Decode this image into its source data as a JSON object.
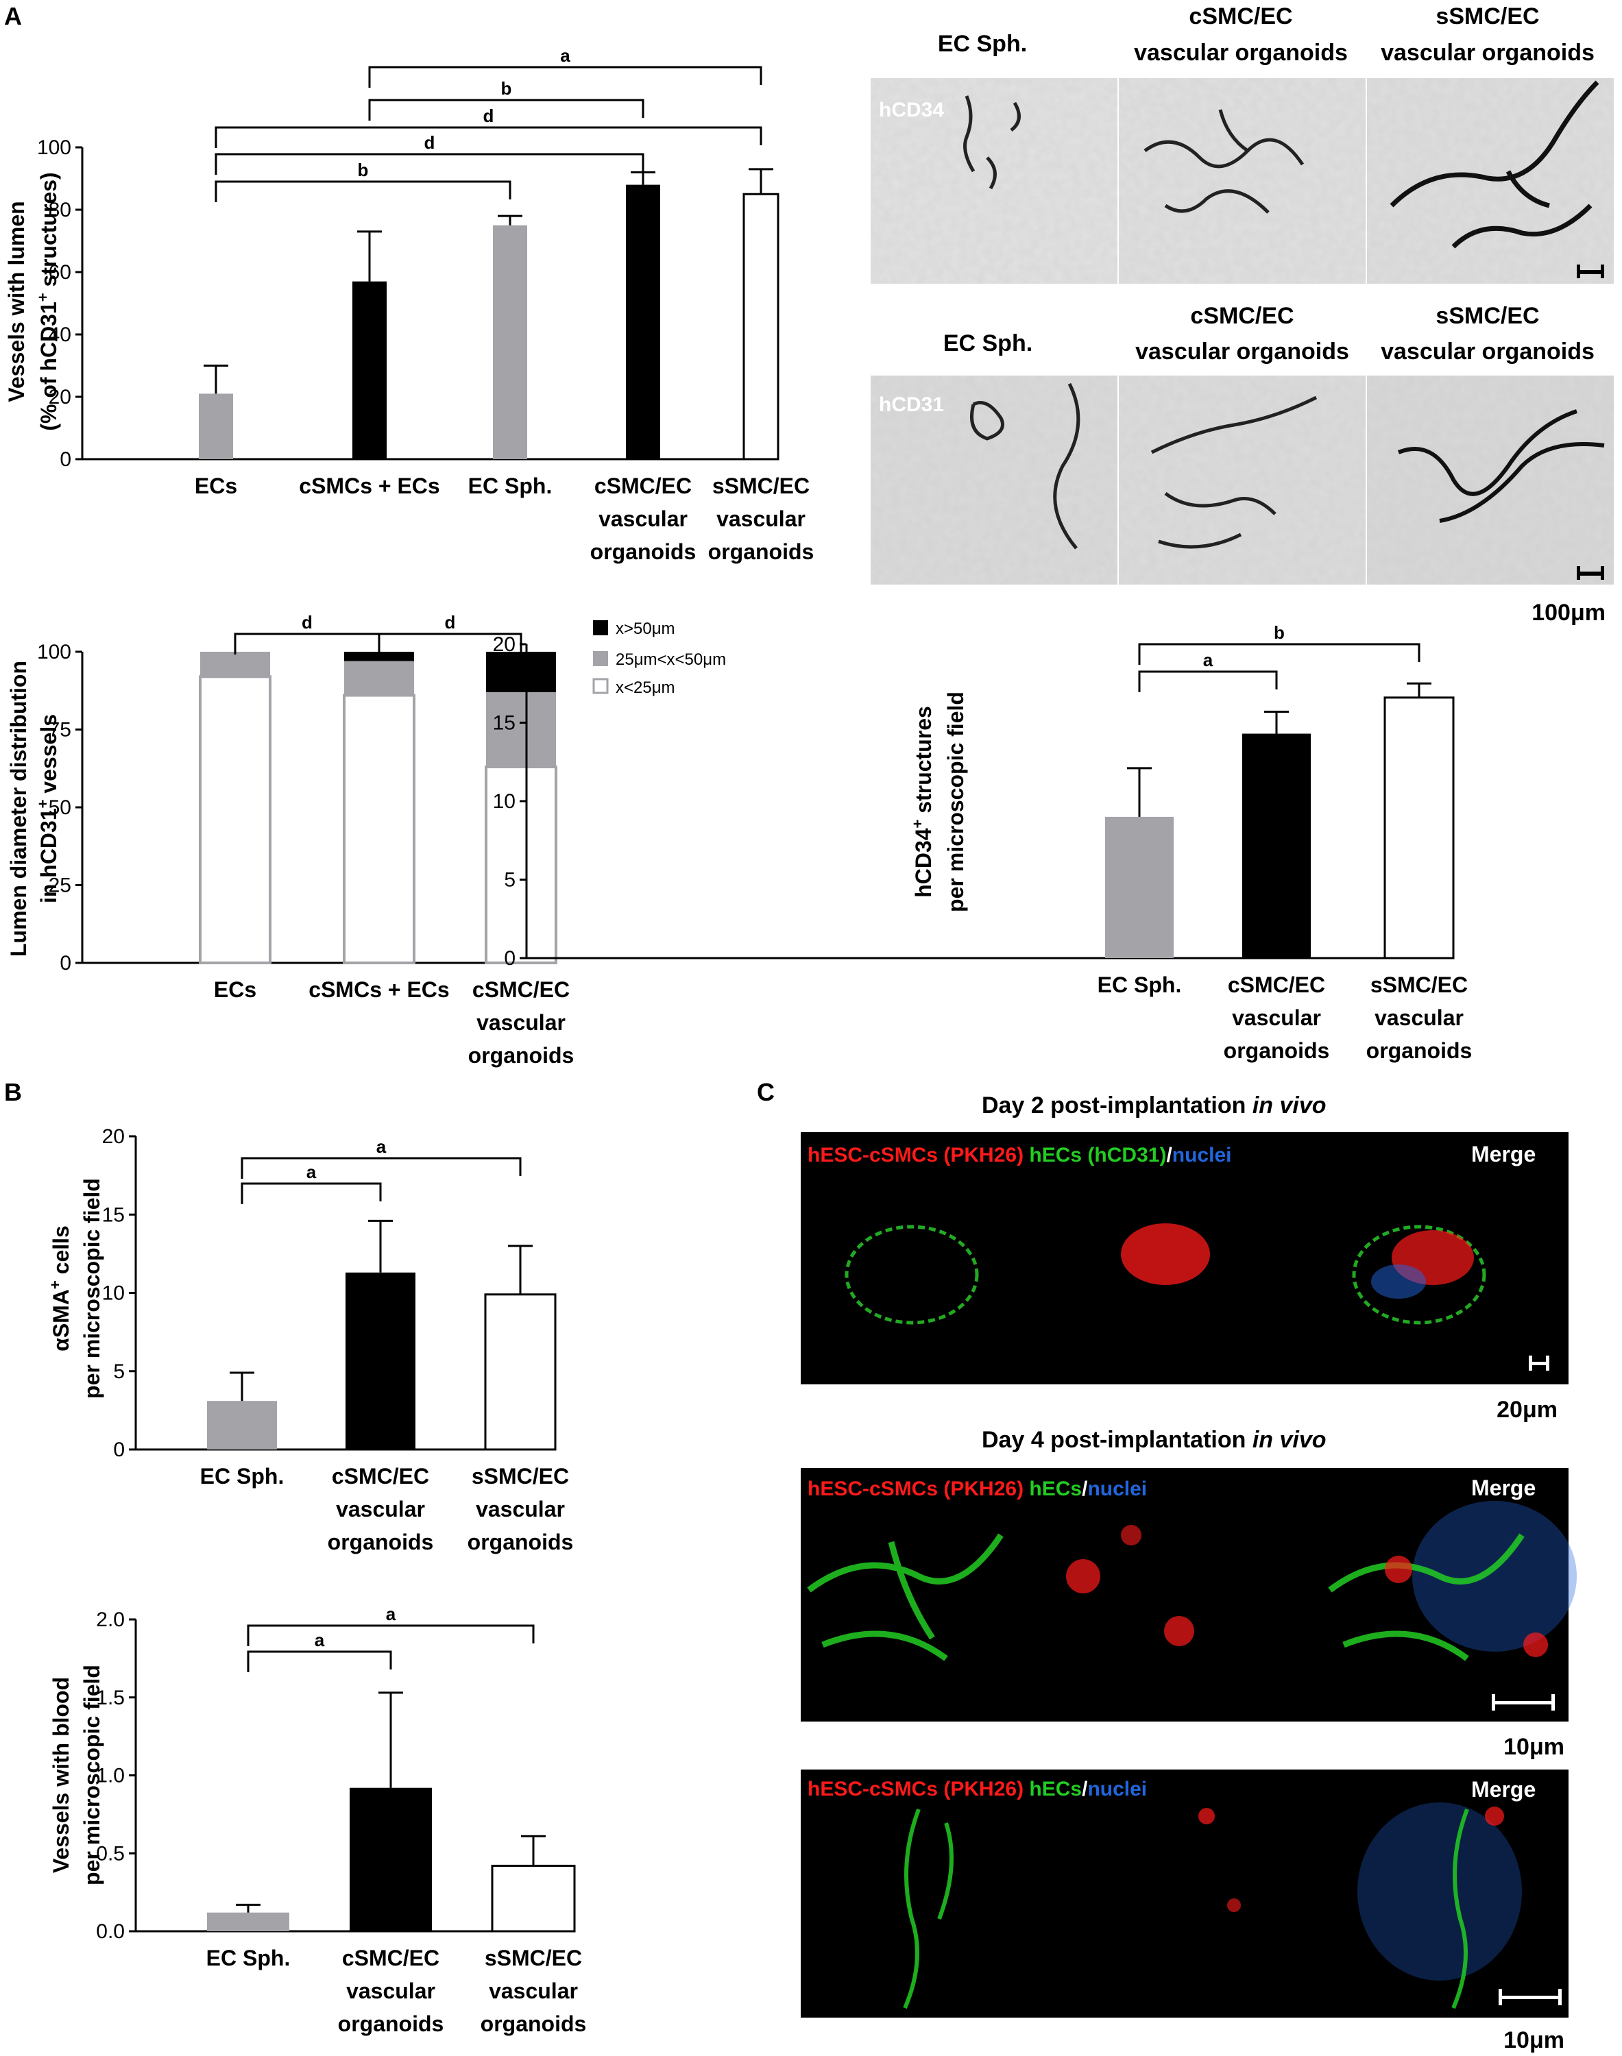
{
  "panel_labels": {
    "A": "A",
    "B": "B",
    "C": "C"
  },
  "colors": {
    "gray": "#a3a3a8",
    "black": "#000000",
    "white": "#ffffff",
    "red": "#ff1a1a",
    "green": "#22cc22",
    "blue": "#2266dd"
  },
  "chart_data": [
    {
      "id": "chart1",
      "type": "bar",
      "ylabel_line1": "Vessels with lumen",
      "ylabel_line2": "(% of hCD31",
      "ylabel_sup": "+",
      "ylabel_line2_end": " structures)",
      "ylim": [
        0,
        100
      ],
      "yticks": [
        "0",
        "20",
        "40",
        "60",
        "80",
        "100"
      ],
      "categories": [
        [
          "ECs"
        ],
        [
          "cSMCs + ECs"
        ],
        [
          "EC Sph."
        ],
        [
          "cSMC/EC",
          "vascular",
          "organoids"
        ],
        [
          "sSMC/EC",
          "vascular",
          "organoids"
        ]
      ],
      "values": [
        21,
        57,
        75,
        88,
        85
      ],
      "errors": [
        9,
        16,
        3,
        4,
        8
      ],
      "fills": [
        "gray",
        "black",
        "gray",
        "black",
        "white"
      ],
      "sig": [
        {
          "from": 1,
          "to": 4,
          "label": "a"
        },
        {
          "from": 1,
          "to": 3,
          "label": "b"
        },
        {
          "from": 0,
          "to": 4,
          "label": "d"
        },
        {
          "from": 0,
          "to": 3,
          "label": "d"
        },
        {
          "from": 0,
          "to": 2,
          "label": "b"
        }
      ]
    },
    {
      "id": "chart2",
      "type": "stacked-bar",
      "ylabel_line1": "Lumen diameter distribution",
      "ylabel_line2": "in hCD31",
      "ylabel_sup": "+",
      "ylabel_line2_end": " vessels",
      "ylim": [
        0,
        100
      ],
      "yticks": [
        "0",
        "25",
        "50",
        "75",
        "100"
      ],
      "categories": [
        [
          "ECs"
        ],
        [
          "cSMCs + ECs"
        ],
        [
          "cSMC/EC",
          "vascular",
          "organoids"
        ]
      ],
      "series": [
        {
          "name": "x<25μm",
          "fill": "white",
          "values": [
            92,
            86,
            63
          ]
        },
        {
          "name": "25μm<x<50μm",
          "fill": "gray",
          "values": [
            8,
            11,
            24
          ]
        },
        {
          "name": "x>50μm",
          "fill": "black",
          "values": [
            0,
            3,
            13
          ]
        }
      ],
      "sig": [
        {
          "from": 0,
          "to": 1,
          "label": "d"
        },
        {
          "from": 1,
          "to": 2,
          "label": "d"
        }
      ]
    },
    {
      "id": "chart3",
      "type": "bar",
      "ylabel_line1": "hCD34",
      "ylabel_sup": "+",
      "ylabel_line1_end": " structures",
      "ylabel_line2": "per microscopic field",
      "ylim": [
        0,
        20
      ],
      "yticks": [
        "0",
        "5",
        "10",
        "15",
        "20"
      ],
      "categories": [
        [
          "EC Sph."
        ],
        [
          "cSMC/EC",
          "vascular",
          "organoids"
        ],
        [
          "sSMC/EC",
          "vascular",
          "organoids"
        ]
      ],
      "values": [
        9.0,
        14.3,
        16.6
      ],
      "errors": [
        3.1,
        1.4,
        0.9
      ],
      "fills": [
        "gray",
        "black",
        "white"
      ],
      "sig": [
        {
          "from": 0,
          "to": 2,
          "label": "b"
        },
        {
          "from": 0,
          "to": 1,
          "label": "a"
        }
      ]
    },
    {
      "id": "chart4",
      "type": "bar",
      "ylabel_line1": "αSMA",
      "ylabel_sup": "+",
      "ylabel_line1_end": " cells",
      "ylabel_line2": "per microscopic field",
      "ylim": [
        0,
        20
      ],
      "yticks": [
        "0",
        "5",
        "10",
        "15",
        "20"
      ],
      "categories": [
        [
          "EC Sph."
        ],
        [
          "cSMC/EC",
          "vascular",
          "organoids"
        ],
        [
          "sSMC/EC",
          "vascular",
          "organoids"
        ]
      ],
      "values": [
        3.1,
        11.3,
        9.9
      ],
      "errors": [
        1.8,
        3.3,
        3.1
      ],
      "fills": [
        "gray",
        "black",
        "white"
      ],
      "sig": [
        {
          "from": 0,
          "to": 2,
          "label": "a"
        },
        {
          "from": 0,
          "to": 1,
          "label": "a"
        }
      ]
    },
    {
      "id": "chart5",
      "type": "bar",
      "ylabel_line1": "Vessels with blood",
      "ylabel_line2": "per microscopic field",
      "ylim": [
        0,
        2.0
      ],
      "yticks": [
        "0.0",
        "0.5",
        "1.0",
        "1.5",
        "2.0"
      ],
      "categories": [
        [
          "EC Sph."
        ],
        [
          "cSMC/EC",
          "vascular",
          "organoids"
        ],
        [
          "sSMC/EC",
          "vascular",
          "organoids"
        ]
      ],
      "values": [
        0.12,
        0.92,
        0.42
      ],
      "errors": [
        0.05,
        0.61,
        0.19
      ],
      "fills": [
        "gray",
        "black",
        "white"
      ],
      "sig": [
        {
          "from": 0,
          "to": 2,
          "label": "a"
        },
        {
          "from": 0,
          "to": 1,
          "label": "a"
        }
      ]
    }
  ],
  "micrographs": {
    "row1": {
      "stain": "hCD34",
      "headers": [
        [
          "EC Sph."
        ],
        [
          "cSMC/EC",
          "vascular organoids"
        ],
        [
          "sSMC/EC",
          "vascular organoids"
        ]
      ]
    },
    "row2": {
      "stain": "hCD31",
      "headers": [
        [
          "EC Sph."
        ],
        [
          "cSMC/EC",
          "vascular organoids"
        ],
        [
          "sSMC/EC",
          "vascular organoids"
        ]
      ]
    },
    "scale_label": "100μm"
  },
  "fluorescence": {
    "day2_title": "Day 2 post-implantation",
    "day4_title": "Day 4 post-implantation",
    "in_vivo": "in vivo",
    "merge": "Merge",
    "cells_label": "hESC-cSMCs (PKH26)",
    "ecs_cd31_label": "hECs (hCD31)",
    "ecs_label": "hECs",
    "slash": "/",
    "nuclei_label": "nuclei",
    "scale_20": "20μm",
    "scale_10a": "10μm",
    "scale_10b": "10μm"
  }
}
